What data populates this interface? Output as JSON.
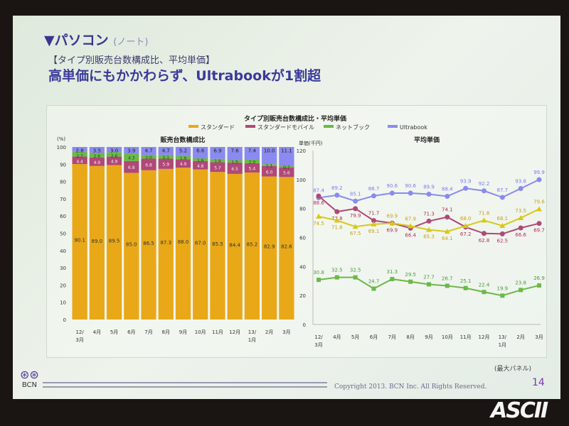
{
  "slide": {
    "title": "▼パソコン",
    "title_sub": "(ノート)",
    "subtitle": "【タイプ別販売台数構成比、平均単価】",
    "headline": "高単価にもかかわらず、Ultrabookが1割超",
    "note": "(最大パネル)",
    "copyright": "Copyright 2013. BCN Inc. All Rights Reserved.",
    "page": "14",
    "logo": "BCN",
    "watermark": "ASCII"
  },
  "colors": {
    "standard": "#e8a818",
    "mobile": "#b04878",
    "netbook": "#6cb848",
    "ultrabook": "#8a8af0",
    "std_line": "#d8c818"
  },
  "chart_data": [
    {
      "type": "bar",
      "stacked": true,
      "super_title": "タイプ別販売台数構成比・平均単価",
      "title": "販売台数構成比",
      "ylabel": "(%)",
      "ylim": [
        0,
        100
      ],
      "yticks": [
        0,
        10,
        20,
        30,
        40,
        50,
        60,
        70,
        80,
        90,
        100
      ],
      "categories": [
        "12/\n3月",
        "4月",
        "5月",
        "6月",
        "7月",
        "8月",
        "9月",
        "10月",
        "11月",
        "12月",
        "13/\n1月",
        "2月",
        "3月"
      ],
      "legend": [
        "スタンダード",
        "スタンダードモバイル",
        "ネットブック",
        "Ultrabook"
      ],
      "series": [
        {
          "name": "スタンダード",
          "values": [
            90.1,
            89.0,
            89.5,
            85.0,
            86.5,
            87.3,
            88.0,
            87.0,
            85.5,
            84.4,
            85.2,
            82.9,
            82.6
          ]
        },
        {
          "name": "スタンダードモバイル",
          "values": [
            4.4,
            4.9,
            4.9,
            6.8,
            6.8,
            5.9,
            4.9,
            4.8,
            5.7,
            6.5,
            5.4,
            6.0,
            5.6
          ]
        },
        {
          "name": "ネットブック",
          "values": [
            2.7,
            2.6,
            2.6,
            4.3,
            2.0,
            2.1,
            1.9,
            1.6,
            1.9,
            1.5,
            2.0,
            1.1,
            0.7
          ]
        },
        {
          "name": "Ultrabook",
          "values": [
            2.8,
            3.5,
            3.0,
            3.9,
            4.7,
            4.7,
            5.2,
            6.6,
            6.9,
            7.6,
            7.4,
            10.0,
            11.1
          ]
        }
      ]
    },
    {
      "type": "line",
      "title": "平均単価",
      "ylabel": "単価(千円)",
      "ylim": [
        0,
        120
      ],
      "yticks": [
        0,
        20,
        40,
        60,
        80,
        100,
        120
      ],
      "categories": [
        "12/\n3月",
        "4月",
        "5月",
        "6月",
        "7月",
        "8月",
        "9月",
        "10月",
        "11月",
        "12月",
        "13/\n1月",
        "2月",
        "3月"
      ],
      "series": [
        {
          "name": "Ultrabook",
          "values": [
            87.4,
            89.2,
            85.1,
            88.7,
            90.6,
            90.6,
            89.9,
            88.4,
            93.9,
            92.2,
            87.7,
            93.8,
            99.9
          ]
        },
        {
          "name": "スタンダードモバイル",
          "values": [
            88.6,
            77.8,
            79.9,
            71.7,
            69.9,
            66.4,
            71.3,
            74.1,
            67.2,
            62.8,
            62.5,
            66.6,
            69.7
          ]
        },
        {
          "name": "スタンダード",
          "values": [
            74.5,
            71.8,
            67.5,
            69.1,
            69.9,
            67.9,
            65.3,
            64.1,
            68.0,
            71.8,
            68.1,
            73.5,
            79.6
          ]
        },
        {
          "name": "ネットブック",
          "values": [
            30.8,
            32.5,
            32.5,
            24.7,
            31.3,
            29.5,
            27.7,
            26.7,
            25.1,
            22.4,
            19.9,
            23.8,
            26.9
          ]
        }
      ]
    }
  ]
}
